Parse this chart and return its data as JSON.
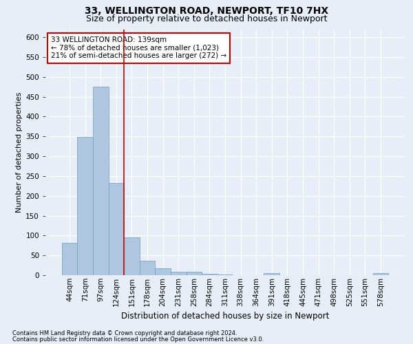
{
  "title1": "33, WELLINGTON ROAD, NEWPORT, TF10 7HX",
  "title2": "Size of property relative to detached houses in Newport",
  "xlabel": "Distribution of detached houses by size in Newport",
  "ylabel": "Number of detached properties",
  "categories": [
    "44sqm",
    "71sqm",
    "97sqm",
    "124sqm",
    "151sqm",
    "178sqm",
    "204sqm",
    "231sqm",
    "258sqm",
    "284sqm",
    "311sqm",
    "338sqm",
    "364sqm",
    "391sqm",
    "418sqm",
    "445sqm",
    "471sqm",
    "498sqm",
    "525sqm",
    "551sqm",
    "578sqm"
  ],
  "values": [
    82,
    348,
    476,
    233,
    96,
    37,
    17,
    8,
    8,
    4,
    1,
    0,
    0,
    5,
    0,
    0,
    0,
    0,
    0,
    0,
    5
  ],
  "bar_color": "#aec6df",
  "bar_edge_color": "#6a9fc0",
  "red_line_index": 3.5,
  "red_line_color": "#cc0000",
  "annotation_text": "33 WELLINGTON ROAD: 139sqm\n← 78% of detached houses are smaller (1,023)\n21% of semi-detached houses are larger (272) →",
  "annotation_box_color": "#ffffff",
  "annotation_box_edge": "#cc0000",
  "ylim": [
    0,
    620
  ],
  "yticks": [
    0,
    50,
    100,
    150,
    200,
    250,
    300,
    350,
    400,
    450,
    500,
    550,
    600
  ],
  "footnote1": "Contains HM Land Registry data © Crown copyright and database right 2024.",
  "footnote2": "Contains public sector information licensed under the Open Government Licence v3.0.",
  "background_color": "#e8eef7",
  "plot_bg_color": "#e8eef7",
  "grid_color": "#ffffff",
  "title1_fontsize": 10,
  "title2_fontsize": 9,
  "xlabel_fontsize": 8.5,
  "ylabel_fontsize": 8,
  "tick_fontsize": 7.5,
  "annot_fontsize": 7.5,
  "footnote_fontsize": 6
}
